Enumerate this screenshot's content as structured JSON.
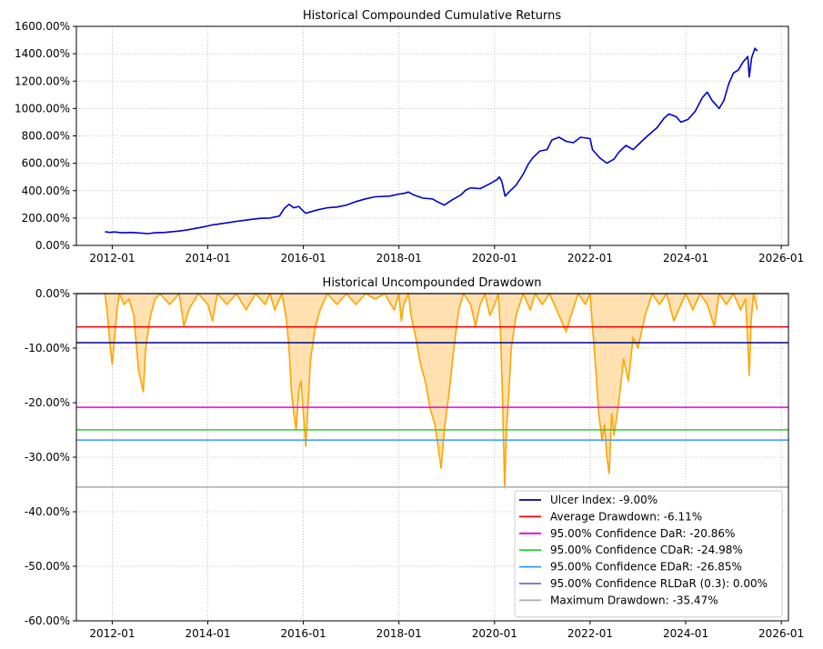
{
  "chart_data": [
    {
      "type": "line",
      "title": "Historical Compounded Cumulative Returns",
      "xlabel": "",
      "ylabel": "",
      "x_range": [
        2011.25,
        2026.15
      ],
      "ylim": [
        0,
        1600
      ],
      "y_unit": "%",
      "grid": true,
      "x_ticks": [
        "2012-01",
        "2014-01",
        "2016-01",
        "2018-01",
        "2020-01",
        "2022-01",
        "2024-01",
        "2026-01"
      ],
      "x_tick_years": [
        2012,
        2014,
        2016,
        2018,
        2020,
        2022,
        2024,
        2026
      ],
      "y_ticks": [
        "0.00%",
        "200.00%",
        "400.00%",
        "600.00%",
        "800.00%",
        "1000.00%",
        "1200.00%",
        "1400.00%",
        "1600.00%"
      ],
      "y_tick_values": [
        0,
        200,
        400,
        600,
        800,
        1000,
        1200,
        1400,
        1600
      ],
      "series": [
        {
          "color": "#0000cc",
          "points": [
            [
              2011.85,
              100
            ],
            [
              2011.95,
              95
            ],
            [
              2012.05,
              98
            ],
            [
              2012.2,
              92
            ],
            [
              2012.4,
              95
            ],
            [
              2012.6,
              90
            ],
            [
              2012.75,
              86
            ],
            [
              2012.9,
              92
            ],
            [
              2013.1,
              95
            ],
            [
              2013.4,
              105
            ],
            [
              2013.6,
              115
            ],
            [
              2013.9,
              135
            ],
            [
              2014.1,
              150
            ],
            [
              2014.3,
              160
            ],
            [
              2014.6,
              175
            ],
            [
              2014.9,
              190
            ],
            [
              2015.1,
              198
            ],
            [
              2015.3,
              200
            ],
            [
              2015.5,
              215
            ],
            [
              2015.6,
              270
            ],
            [
              2015.7,
              300
            ],
            [
              2015.8,
              275
            ],
            [
              2015.9,
              285
            ],
            [
              2016.0,
              250
            ],
            [
              2016.05,
              235
            ],
            [
              2016.1,
              240
            ],
            [
              2016.3,
              260
            ],
            [
              2016.5,
              275
            ],
            [
              2016.7,
              280
            ],
            [
              2016.9,
              295
            ],
            [
              2017.1,
              320
            ],
            [
              2017.3,
              340
            ],
            [
              2017.5,
              355
            ],
            [
              2017.8,
              360
            ],
            [
              2018.0,
              375
            ],
            [
              2018.1,
              380
            ],
            [
              2018.2,
              390
            ],
            [
              2018.3,
              370
            ],
            [
              2018.5,
              345
            ],
            [
              2018.7,
              340
            ],
            [
              2018.8,
              320
            ],
            [
              2018.95,
              295
            ],
            [
              2019.1,
              330
            ],
            [
              2019.3,
              370
            ],
            [
              2019.4,
              405
            ],
            [
              2019.5,
              420
            ],
            [
              2019.7,
              415
            ],
            [
              2019.9,
              450
            ],
            [
              2020.05,
              480
            ],
            [
              2020.1,
              500
            ],
            [
              2020.15,
              470
            ],
            [
              2020.22,
              360
            ],
            [
              2020.3,
              390
            ],
            [
              2020.45,
              440
            ],
            [
              2020.6,
              520
            ],
            [
              2020.7,
              590
            ],
            [
              2020.8,
              640
            ],
            [
              2020.95,
              690
            ],
            [
              2021.1,
              700
            ],
            [
              2021.2,
              770
            ],
            [
              2021.35,
              790
            ],
            [
              2021.5,
              760
            ],
            [
              2021.65,
              750
            ],
            [
              2021.8,
              790
            ],
            [
              2022.0,
              780
            ],
            [
              2022.05,
              700
            ],
            [
              2022.2,
              640
            ],
            [
              2022.35,
              600
            ],
            [
              2022.5,
              630
            ],
            [
              2022.6,
              680
            ],
            [
              2022.75,
              730
            ],
            [
              2022.9,
              700
            ],
            [
              2023.05,
              750
            ],
            [
              2023.2,
              800
            ],
            [
              2023.4,
              860
            ],
            [
              2023.55,
              930
            ],
            [
              2023.65,
              960
            ],
            [
              2023.8,
              940
            ],
            [
              2023.9,
              900
            ],
            [
              2024.05,
              920
            ],
            [
              2024.2,
              980
            ],
            [
              2024.35,
              1080
            ],
            [
              2024.45,
              1120
            ],
            [
              2024.55,
              1060
            ],
            [
              2024.7,
              1000
            ],
            [
              2024.8,
              1060
            ],
            [
              2024.9,
              1180
            ],
            [
              2025.0,
              1260
            ],
            [
              2025.1,
              1280
            ],
            [
              2025.2,
              1340
            ],
            [
              2025.3,
              1380
            ],
            [
              2025.33,
              1230
            ],
            [
              2025.38,
              1370
            ],
            [
              2025.45,
              1440
            ],
            [
              2025.5,
              1420
            ]
          ]
        }
      ]
    },
    {
      "type": "area",
      "title": "Historical Uncompounded Drawdown",
      "xlabel": "",
      "ylabel": "",
      "x_range": [
        2011.25,
        2026.15
      ],
      "ylim": [
        -60,
        0
      ],
      "y_unit": "%",
      "grid": true,
      "legend_position": "bottom-right",
      "x_ticks": [
        "2012-01",
        "2014-01",
        "2016-01",
        "2018-01",
        "2020-01",
        "2022-01",
        "2024-01",
        "2026-01"
      ],
      "x_tick_years": [
        2012,
        2014,
        2016,
        2018,
        2020,
        2022,
        2024,
        2026
      ],
      "y_ticks": [
        "0.00%",
        "-10.00%",
        "-20.00%",
        "-30.00%",
        "-40.00%",
        "-50.00%",
        "-60.00%"
      ],
      "y_tick_values": [
        0,
        -10,
        -20,
        -30,
        -40,
        -50,
        -60
      ],
      "series": [
        {
          "color": "#ffa500",
          "fill": "#ffe0b0",
          "points": [
            [
              2011.85,
              0
            ],
            [
              2011.9,
              -4
            ],
            [
              2011.95,
              -9
            ],
            [
              2012.0,
              -13
            ],
            [
              2012.05,
              -8
            ],
            [
              2012.1,
              -3
            ],
            [
              2012.15,
              0
            ],
            [
              2012.25,
              -2
            ],
            [
              2012.35,
              -1
            ],
            [
              2012.45,
              -4
            ],
            [
              2012.5,
              -9
            ],
            [
              2012.55,
              -14
            ],
            [
              2012.6,
              -16
            ],
            [
              2012.65,
              -18
            ],
            [
              2012.7,
              -10
            ],
            [
              2012.8,
              -4
            ],
            [
              2012.9,
              -1
            ],
            [
              2013.0,
              0
            ],
            [
              2013.2,
              -2
            ],
            [
              2013.4,
              0
            ],
            [
              2013.5,
              -6
            ],
            [
              2013.6,
              -3
            ],
            [
              2013.8,
              0
            ],
            [
              2014.0,
              -2
            ],
            [
              2014.1,
              -5
            ],
            [
              2014.2,
              0
            ],
            [
              2014.4,
              -2
            ],
            [
              2014.6,
              0
            ],
            [
              2014.8,
              -3
            ],
            [
              2015.0,
              0
            ],
            [
              2015.2,
              -2
            ],
            [
              2015.3,
              0
            ],
            [
              2015.4,
              -3
            ],
            [
              2015.55,
              0
            ],
            [
              2015.65,
              -5
            ],
            [
              2015.7,
              -10
            ],
            [
              2015.75,
              -18
            ],
            [
              2015.8,
              -22
            ],
            [
              2015.85,
              -25
            ],
            [
              2015.9,
              -18
            ],
            [
              2015.95,
              -16
            ],
            [
              2016.0,
              -22
            ],
            [
              2016.05,
              -28
            ],
            [
              2016.1,
              -20
            ],
            [
              2016.15,
              -12
            ],
            [
              2016.25,
              -6
            ],
            [
              2016.35,
              -3
            ],
            [
              2016.5,
              0
            ],
            [
              2016.7,
              -2
            ],
            [
              2016.9,
              0
            ],
            [
              2017.1,
              -2
            ],
            [
              2017.3,
              0
            ],
            [
              2017.5,
              -1
            ],
            [
              2017.7,
              0
            ],
            [
              2017.9,
              -3
            ],
            [
              2018.0,
              0
            ],
            [
              2018.05,
              -5
            ],
            [
              2018.1,
              -2
            ],
            [
              2018.2,
              0
            ],
            [
              2018.25,
              -4
            ],
            [
              2018.35,
              -8
            ],
            [
              2018.45,
              -13
            ],
            [
              2018.55,
              -16
            ],
            [
              2018.65,
              -21
            ],
            [
              2018.75,
              -24
            ],
            [
              2018.82,
              -28
            ],
            [
              2018.88,
              -32
            ],
            [
              2018.95,
              -25
            ],
            [
              2019.05,
              -18
            ],
            [
              2019.15,
              -10
            ],
            [
              2019.25,
              -3
            ],
            [
              2019.35,
              0
            ],
            [
              2019.5,
              -2
            ],
            [
              2019.6,
              -6
            ],
            [
              2019.7,
              -2
            ],
            [
              2019.8,
              0
            ],
            [
              2019.9,
              -4
            ],
            [
              2020.0,
              -2
            ],
            [
              2020.08,
              0
            ],
            [
              2020.13,
              -8
            ],
            [
              2020.17,
              -20
            ],
            [
              2020.21,
              -35.5
            ],
            [
              2020.25,
              -25
            ],
            [
              2020.3,
              -18
            ],
            [
              2020.35,
              -10
            ],
            [
              2020.45,
              -4
            ],
            [
              2020.6,
              0
            ],
            [
              2020.75,
              -3
            ],
            [
              2020.85,
              0
            ],
            [
              2021.0,
              -2
            ],
            [
              2021.15,
              0
            ],
            [
              2021.3,
              -3
            ],
            [
              2021.5,
              -7
            ],
            [
              2021.6,
              -4
            ],
            [
              2021.75,
              0
            ],
            [
              2021.9,
              -2
            ],
            [
              2022.0,
              0
            ],
            [
              2022.05,
              -6
            ],
            [
              2022.12,
              -14
            ],
            [
              2022.18,
              -22
            ],
            [
              2022.25,
              -27
            ],
            [
              2022.3,
              -24
            ],
            [
              2022.35,
              -30
            ],
            [
              2022.4,
              -33
            ],
            [
              2022.45,
              -22
            ],
            [
              2022.5,
              -26
            ],
            [
              2022.6,
              -20
            ],
            [
              2022.7,
              -12
            ],
            [
              2022.8,
              -16
            ],
            [
              2022.9,
              -8
            ],
            [
              2023.0,
              -10
            ],
            [
              2023.15,
              -4
            ],
            [
              2023.3,
              0
            ],
            [
              2023.45,
              -2
            ],
            [
              2023.6,
              0
            ],
            [
              2023.75,
              -5
            ],
            [
              2023.9,
              -2
            ],
            [
              2024.0,
              0
            ],
            [
              2024.15,
              -3
            ],
            [
              2024.3,
              0
            ],
            [
              2024.45,
              -2
            ],
            [
              2024.6,
              -6
            ],
            [
              2024.7,
              0
            ],
            [
              2024.85,
              -2
            ],
            [
              2025.0,
              0
            ],
            [
              2025.15,
              -3
            ],
            [
              2025.25,
              -1
            ],
            [
              2025.3,
              -9
            ],
            [
              2025.33,
              -15
            ],
            [
              2025.37,
              -5
            ],
            [
              2025.42,
              0
            ],
            [
              2025.5,
              -3
            ]
          ]
        }
      ],
      "reference_lines": [
        {
          "label": "Ulcer Index: -9.00%",
          "value": -9.0,
          "color": "#00008b"
        },
        {
          "label": "Average Drawdown: -6.11%",
          "value": -6.11,
          "color": "#e60000"
        },
        {
          "label": "95.00% Confidence DaR: -20.86%",
          "value": -20.86,
          "color": "#e600e6"
        },
        {
          "label": "95.00% Confidence CDaR: -24.98%",
          "value": -24.98,
          "color": "#33cc33"
        },
        {
          "label": "95.00% Confidence EDaR: -26.85%",
          "value": -26.85,
          "color": "#3399ff"
        },
        {
          "label": "95.00% Confidence RLDaR (0.3): 0.00%",
          "value": 0.0,
          "color": "#7b68c8"
        },
        {
          "label": "Maximum Drawdown: -35.47%",
          "value": -35.47,
          "color": "#aaaaaa"
        }
      ]
    }
  ]
}
